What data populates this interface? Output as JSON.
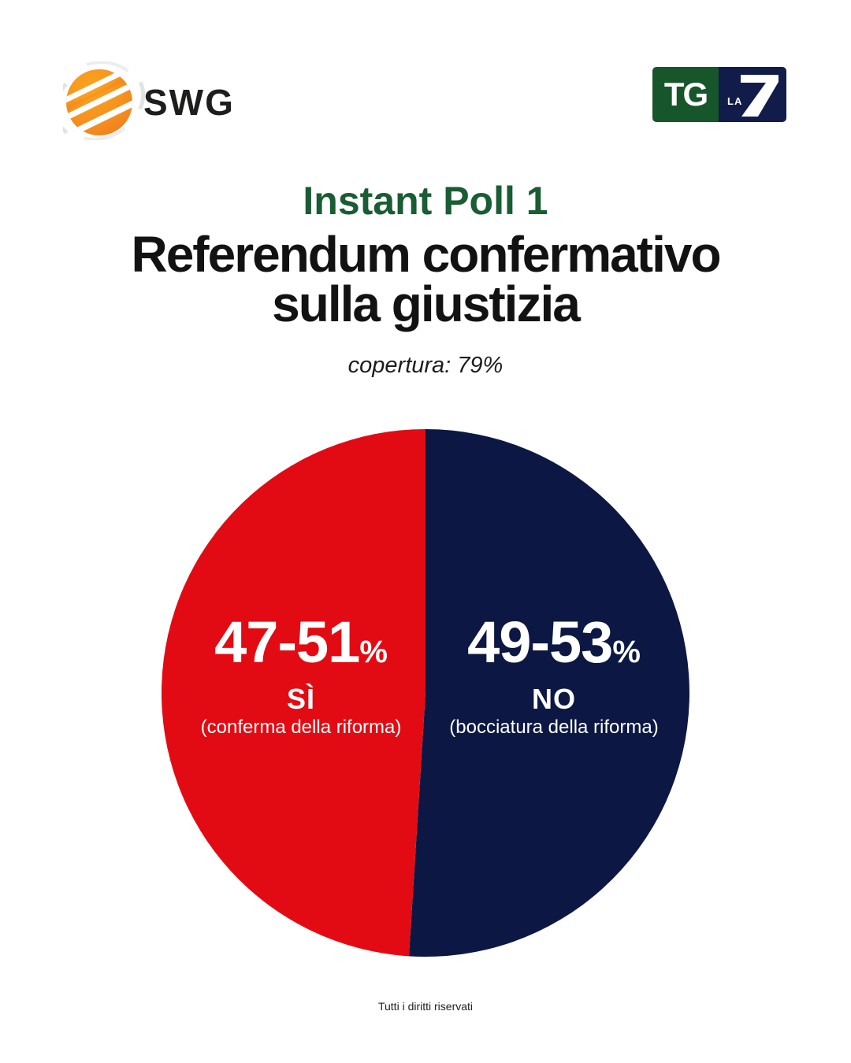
{
  "header": {
    "swg_logo_text": "SWG",
    "tg_logo": {
      "tg": "TG",
      "la": "LA"
    }
  },
  "title": {
    "kicker": "Instant Poll 1",
    "main_line1": "Referendum confermativo",
    "main_line2": "sulla giustizia",
    "subtitle": "copertura: 79%"
  },
  "chart_data": {
    "type": "pie",
    "title": "Referendum confermativo sulla giustizia",
    "kicker": "Instant Poll 1",
    "coverage_note": "copertura: 79%",
    "unit": "%",
    "legend_position": "inside-slices",
    "start_angle": "top",
    "slices": [
      {
        "name": "SÌ",
        "description": "(conferma della riforma)",
        "range_pct": "47-51",
        "midpoint_pct": 49,
        "color": "#e30b13",
        "text_color": "#ffffff",
        "side": "left"
      },
      {
        "name": "NO",
        "description": "(bocciatura della riforma)",
        "range_pct": "49-53",
        "midpoint_pct": 51,
        "color": "#0c1843",
        "text_color": "#ffffff",
        "side": "right"
      }
    ]
  },
  "footer": {
    "copyright": "Tutti i diritti riservati"
  },
  "colors": {
    "accent_green": "#1a5c33",
    "brand_orange": "#f6921e",
    "si_red": "#e30b13",
    "no_navy": "#0c1843"
  }
}
